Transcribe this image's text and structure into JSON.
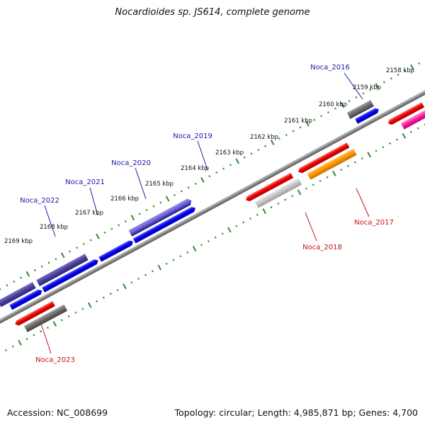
{
  "title": "Nocardioides sp. JS614, complete genome",
  "footer": {
    "accession": "Accession: NC_008699",
    "summary": "Topology: circular; Length: 4,985,871 bp; Genes: 4,700"
  },
  "colors": {
    "backbone": "#8a8a8a",
    "tick": "#2e8b2e",
    "plus_label": "#1a1aa6",
    "minus_label": "#cc1111"
  },
  "ticks": [
    {
      "label": "2158 kbp",
      "kbp": 2158
    },
    {
      "label": "2159 kbp",
      "kbp": 2159
    },
    {
      "label": "2160 kbp",
      "kbp": 2160
    },
    {
      "label": "2161 kbp",
      "kbp": 2161
    },
    {
      "label": "2162 kbp",
      "kbp": 2162
    },
    {
      "label": "2163 kbp",
      "kbp": 2163
    },
    {
      "label": "2164 kbp",
      "kbp": 2164
    },
    {
      "label": "2165 kbp",
      "kbp": 2165
    },
    {
      "label": "2166 kbp",
      "kbp": 2166
    },
    {
      "label": "2167 kbp",
      "kbp": 2167
    },
    {
      "label": "2168 kbp",
      "kbp": 2168
    },
    {
      "label": "2169 kbp",
      "kbp": 2169
    }
  ],
  "labels": [
    {
      "name": "Noca_2016",
      "strand": "plus"
    },
    {
      "name": "Noca_2019",
      "strand": "plus"
    },
    {
      "name": "Noca_2020",
      "strand": "plus"
    },
    {
      "name": "Noca_2021",
      "strand": "plus"
    },
    {
      "name": "Noca_2022",
      "strand": "plus"
    },
    {
      "name": "Noca_2017",
      "strand": "minus"
    },
    {
      "name": "Noca_2018",
      "strand": "minus"
    },
    {
      "name": "Noca_2023",
      "strand": "minus"
    }
  ]
}
